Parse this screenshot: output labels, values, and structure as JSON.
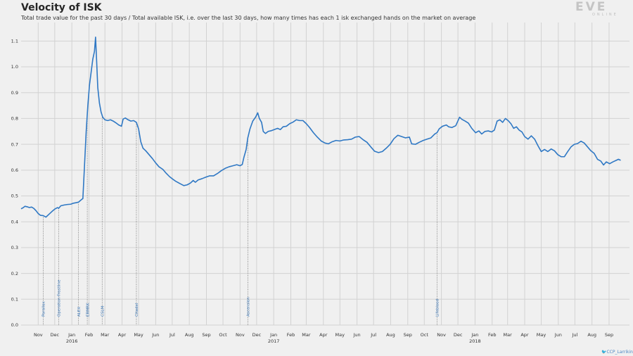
{
  "title": "Velocity of ISK",
  "subtitle": "Total trade value for the past 30 days / Total available ISK, i.e. over the last 30 days, how many times has each 1 isk exchanged hands on the market on average",
  "logo": {
    "main": "EVE",
    "sub": "ONLINE"
  },
  "credit": "CCP_Larrikin",
  "colors": {
    "line": "#2f78c4",
    "grid": "#d2d2d2",
    "event": "#555555",
    "event_label": "#3c78b8",
    "background": "#f0f0f0"
  },
  "chart_data": {
    "type": "line",
    "title": "Velocity of ISK",
    "ylim": [
      0.0,
      1.15
    ],
    "yticks": [
      0.0,
      0.1,
      0.2,
      0.3,
      0.4,
      0.5,
      0.6,
      0.7,
      0.8,
      0.9,
      1.0,
      1.1
    ],
    "ytick_labels": [
      "0.0",
      "0.1",
      "0.2",
      "0.3",
      "0.4",
      "0.5",
      "0.6",
      "0.7",
      "0.8",
      "0.9",
      "1.0",
      "1.1"
    ],
    "xlim": [
      "2015-10-01",
      "2018-10-08"
    ],
    "xticks": [
      {
        "label": "Nov",
        "date": "2015-11-01"
      },
      {
        "label": "Dec",
        "date": "2015-12-01"
      },
      {
        "label": "Jan",
        "date": "2016-01-01",
        "year": "2016"
      },
      {
        "label": "Feb",
        "date": "2016-02-01"
      },
      {
        "label": "Mar",
        "date": "2016-03-01"
      },
      {
        "label": "Apr",
        "date": "2016-04-01"
      },
      {
        "label": "May",
        "date": "2016-05-01"
      },
      {
        "label": "Jun",
        "date": "2016-06-01"
      },
      {
        "label": "Jul",
        "date": "2016-07-01"
      },
      {
        "label": "Aug",
        "date": "2016-08-01"
      },
      {
        "label": "Sep",
        "date": "2016-09-01"
      },
      {
        "label": "Oct",
        "date": "2016-10-01"
      },
      {
        "label": "Nov",
        "date": "2016-11-01"
      },
      {
        "label": "Dec",
        "date": "2016-12-01"
      },
      {
        "label": "Jan",
        "date": "2017-01-01",
        "year": "2017"
      },
      {
        "label": "Feb",
        "date": "2017-02-01"
      },
      {
        "label": "Mar",
        "date": "2017-03-01"
      },
      {
        "label": "Apr",
        "date": "2017-04-01"
      },
      {
        "label": "May",
        "date": "2017-05-01"
      },
      {
        "label": "Jun",
        "date": "2017-06-01"
      },
      {
        "label": "Jul",
        "date": "2017-07-01"
      },
      {
        "label": "Aug",
        "date": "2017-08-01"
      },
      {
        "label": "Sep",
        "date": "2017-09-01"
      },
      {
        "label": "Oct",
        "date": "2017-10-01"
      },
      {
        "label": "Nov",
        "date": "2017-11-01"
      },
      {
        "label": "Dec",
        "date": "2017-12-01"
      },
      {
        "label": "Jan",
        "date": "2018-01-01",
        "year": "2018"
      },
      {
        "label": "Feb",
        "date": "2018-02-01"
      },
      {
        "label": "Mar",
        "date": "2018-03-01"
      },
      {
        "label": "Apr",
        "date": "2018-04-01"
      },
      {
        "label": "May",
        "date": "2018-05-01"
      },
      {
        "label": "Jun",
        "date": "2018-06-01"
      },
      {
        "label": "Jul",
        "date": "2018-07-01"
      },
      {
        "label": "Aug",
        "date": "2018-08-01"
      },
      {
        "label": "Sep",
        "date": "2018-09-01"
      }
    ],
    "events": [
      {
        "label": "Parallax",
        "date": "2015-11-10"
      },
      {
        "label": "Operation Frostline",
        "date": "2015-12-08"
      },
      {
        "label": "ALEX",
        "date": "2016-01-13"
      },
      {
        "label": "ERMRK",
        "date": "2016-01-29"
      },
      {
        "label": "CSLM",
        "date": "2016-02-25"
      },
      {
        "label": "Citadel",
        "date": "2016-04-27"
      },
      {
        "label": "Ascension",
        "date": "2016-11-15"
      },
      {
        "label": "Lifeblood",
        "date": "2017-10-24"
      }
    ],
    "series": [
      {
        "points": [
          [
            "2015-10-01",
            0.45
          ],
          [
            "2015-10-05",
            0.455
          ],
          [
            "2015-10-08",
            0.46
          ],
          [
            "2015-10-12",
            0.458
          ],
          [
            "2015-10-16",
            0.455
          ],
          [
            "2015-10-20",
            0.457
          ],
          [
            "2015-10-24",
            0.452
          ],
          [
            "2015-10-28",
            0.443
          ],
          [
            "2015-11-01",
            0.432
          ],
          [
            "2015-11-05",
            0.425
          ],
          [
            "2015-11-10",
            0.424
          ],
          [
            "2015-11-15",
            0.418
          ],
          [
            "2015-11-20",
            0.428
          ],
          [
            "2015-11-26",
            0.44
          ],
          [
            "2015-12-01",
            0.449
          ],
          [
            "2015-12-06",
            0.455
          ],
          [
            "2015-12-08",
            0.452
          ],
          [
            "2015-12-12",
            0.462
          ],
          [
            "2015-12-18",
            0.465
          ],
          [
            "2015-12-24",
            0.467
          ],
          [
            "2015-12-30",
            0.468
          ],
          [
            "2016-01-04",
            0.472
          ],
          [
            "2016-01-09",
            0.474
          ],
          [
            "2016-01-13",
            0.476
          ],
          [
            "2016-01-18",
            0.485
          ],
          [
            "2016-01-21",
            0.49
          ],
          [
            "2016-01-24",
            0.62
          ],
          [
            "2016-01-27",
            0.75
          ],
          [
            "2016-01-30",
            0.85
          ],
          [
            "2016-02-02",
            0.93
          ],
          [
            "2016-02-05",
            0.98
          ],
          [
            "2016-02-08",
            1.03
          ],
          [
            "2016-02-11",
            1.06
          ],
          [
            "2016-02-13",
            1.115
          ],
          [
            "2016-02-15",
            1.02
          ],
          [
            "2016-02-17",
            0.92
          ],
          [
            "2016-02-20",
            0.86
          ],
          [
            "2016-02-23",
            0.825
          ],
          [
            "2016-02-26",
            0.805
          ],
          [
            "2016-03-01",
            0.795
          ],
          [
            "2016-03-06",
            0.792
          ],
          [
            "2016-03-11",
            0.795
          ],
          [
            "2016-03-16",
            0.79
          ],
          [
            "2016-03-21",
            0.783
          ],
          [
            "2016-03-26",
            0.775
          ],
          [
            "2016-03-31",
            0.77
          ],
          [
            "2016-04-03",
            0.798
          ],
          [
            "2016-04-07",
            0.802
          ],
          [
            "2016-04-12",
            0.795
          ],
          [
            "2016-04-17",
            0.79
          ],
          [
            "2016-04-22",
            0.792
          ],
          [
            "2016-04-27",
            0.785
          ],
          [
            "2016-05-01",
            0.76
          ],
          [
            "2016-05-05",
            0.71
          ],
          [
            "2016-05-09",
            0.685
          ],
          [
            "2016-05-14",
            0.675
          ],
          [
            "2016-05-20",
            0.66
          ],
          [
            "2016-05-26",
            0.645
          ],
          [
            "2016-06-01",
            0.628
          ],
          [
            "2016-06-07",
            0.613
          ],
          [
            "2016-06-14",
            0.603
          ],
          [
            "2016-06-20",
            0.588
          ],
          [
            "2016-06-26",
            0.575
          ],
          [
            "2016-07-02",
            0.565
          ],
          [
            "2016-07-08",
            0.556
          ],
          [
            "2016-07-15",
            0.548
          ],
          [
            "2016-07-22",
            0.54
          ],
          [
            "2016-07-28",
            0.543
          ],
          [
            "2016-08-03",
            0.55
          ],
          [
            "2016-08-08",
            0.56
          ],
          [
            "2016-08-12",
            0.553
          ],
          [
            "2016-08-17",
            0.562
          ],
          [
            "2016-08-24",
            0.567
          ],
          [
            "2016-08-31",
            0.573
          ],
          [
            "2016-09-07",
            0.578
          ],
          [
            "2016-09-14",
            0.578
          ],
          [
            "2016-09-21",
            0.587
          ],
          [
            "2016-09-28",
            0.598
          ],
          [
            "2016-10-05",
            0.607
          ],
          [
            "2016-10-12",
            0.613
          ],
          [
            "2016-10-19",
            0.617
          ],
          [
            "2016-10-26",
            0.621
          ],
          [
            "2016-11-01",
            0.617
          ],
          [
            "2016-11-05",
            0.622
          ],
          [
            "2016-11-08",
            0.65
          ],
          [
            "2016-11-12",
            0.68
          ],
          [
            "2016-11-15",
            0.725
          ],
          [
            "2016-11-19",
            0.76
          ],
          [
            "2016-11-24",
            0.79
          ],
          [
            "2016-11-29",
            0.805
          ],
          [
            "2016-12-03",
            0.822
          ],
          [
            "2016-12-06",
            0.8
          ],
          [
            "2016-12-10",
            0.785
          ],
          [
            "2016-12-13",
            0.75
          ],
          [
            "2016-12-17",
            0.742
          ],
          [
            "2016-12-22",
            0.75
          ],
          [
            "2016-12-28",
            0.753
          ],
          [
            "2017-01-03",
            0.758
          ],
          [
            "2017-01-08",
            0.762
          ],
          [
            "2017-01-13",
            0.757
          ],
          [
            "2017-01-18",
            0.768
          ],
          [
            "2017-01-24",
            0.77
          ],
          [
            "2017-01-30",
            0.78
          ],
          [
            "2017-02-05",
            0.786
          ],
          [
            "2017-02-11",
            0.795
          ],
          [
            "2017-02-17",
            0.792
          ],
          [
            "2017-02-23",
            0.792
          ],
          [
            "2017-03-01",
            0.78
          ],
          [
            "2017-03-07",
            0.765
          ],
          [
            "2017-03-14",
            0.745
          ],
          [
            "2017-03-21",
            0.728
          ],
          [
            "2017-03-28",
            0.713
          ],
          [
            "2017-04-04",
            0.705
          ],
          [
            "2017-04-10",
            0.702
          ],
          [
            "2017-04-17",
            0.71
          ],
          [
            "2017-04-24",
            0.715
          ],
          [
            "2017-05-01",
            0.713
          ],
          [
            "2017-05-08",
            0.717
          ],
          [
            "2017-05-15",
            0.718
          ],
          [
            "2017-05-22",
            0.72
          ],
          [
            "2017-05-29",
            0.728
          ],
          [
            "2017-06-05",
            0.73
          ],
          [
            "2017-06-12",
            0.718
          ],
          [
            "2017-06-19",
            0.708
          ],
          [
            "2017-06-26",
            0.69
          ],
          [
            "2017-07-03",
            0.673
          ],
          [
            "2017-07-10",
            0.668
          ],
          [
            "2017-07-17",
            0.672
          ],
          [
            "2017-07-24",
            0.685
          ],
          [
            "2017-07-31",
            0.7
          ],
          [
            "2017-08-07",
            0.722
          ],
          [
            "2017-08-14",
            0.735
          ],
          [
            "2017-08-21",
            0.73
          ],
          [
            "2017-08-28",
            0.725
          ],
          [
            "2017-09-04",
            0.728
          ],
          [
            "2017-09-08",
            0.702
          ],
          [
            "2017-09-15",
            0.7
          ],
          [
            "2017-09-22",
            0.708
          ],
          [
            "2017-09-29",
            0.715
          ],
          [
            "2017-10-06",
            0.72
          ],
          [
            "2017-10-13",
            0.725
          ],
          [
            "2017-10-20",
            0.74
          ],
          [
            "2017-10-24",
            0.745
          ],
          [
            "2017-10-28",
            0.76
          ],
          [
            "2017-11-03",
            0.77
          ],
          [
            "2017-11-10",
            0.775
          ],
          [
            "2017-11-14",
            0.768
          ],
          [
            "2017-11-20",
            0.765
          ],
          [
            "2017-11-27",
            0.772
          ],
          [
            "2017-12-04",
            0.805
          ],
          [
            "2017-12-08",
            0.797
          ],
          [
            "2017-12-14",
            0.79
          ],
          [
            "2017-12-20",
            0.782
          ],
          [
            "2017-12-26",
            0.762
          ],
          [
            "2018-01-02",
            0.745
          ],
          [
            "2018-01-08",
            0.752
          ],
          [
            "2018-01-13",
            0.74
          ],
          [
            "2018-01-19",
            0.75
          ],
          [
            "2018-01-25",
            0.752
          ],
          [
            "2018-01-31",
            0.748
          ],
          [
            "2018-02-05",
            0.755
          ],
          [
            "2018-02-10",
            0.79
          ],
          [
            "2018-02-15",
            0.795
          ],
          [
            "2018-02-20",
            0.785
          ],
          [
            "2018-02-25",
            0.8
          ],
          [
            "2018-03-02",
            0.792
          ],
          [
            "2018-03-07",
            0.78
          ],
          [
            "2018-03-12",
            0.762
          ],
          [
            "2018-03-17",
            0.768
          ],
          [
            "2018-03-22",
            0.755
          ],
          [
            "2018-03-27",
            0.748
          ],
          [
            "2018-04-01",
            0.73
          ],
          [
            "2018-04-07",
            0.72
          ],
          [
            "2018-04-13",
            0.733
          ],
          [
            "2018-04-19",
            0.72
          ],
          [
            "2018-04-25",
            0.695
          ],
          [
            "2018-05-01",
            0.672
          ],
          [
            "2018-05-07",
            0.68
          ],
          [
            "2018-05-13",
            0.672
          ],
          [
            "2018-05-19",
            0.682
          ],
          [
            "2018-05-25",
            0.675
          ],
          [
            "2018-05-31",
            0.66
          ],
          [
            "2018-06-06",
            0.652
          ],
          [
            "2018-06-12",
            0.652
          ],
          [
            "2018-06-18",
            0.672
          ],
          [
            "2018-06-24",
            0.69
          ],
          [
            "2018-06-30",
            0.7
          ],
          [
            "2018-07-06",
            0.703
          ],
          [
            "2018-07-12",
            0.712
          ],
          [
            "2018-07-18",
            0.705
          ],
          [
            "2018-07-24",
            0.69
          ],
          [
            "2018-07-30",
            0.675
          ],
          [
            "2018-08-05",
            0.665
          ],
          [
            "2018-08-11",
            0.642
          ],
          [
            "2018-08-17",
            0.635
          ],
          [
            "2018-08-22",
            0.62
          ],
          [
            "2018-08-27",
            0.632
          ],
          [
            "2018-09-02",
            0.625
          ],
          [
            "2018-09-08",
            0.632
          ],
          [
            "2018-09-14",
            0.638
          ],
          [
            "2018-09-18",
            0.642
          ],
          [
            "2018-09-22",
            0.638
          ]
        ]
      }
    ]
  }
}
